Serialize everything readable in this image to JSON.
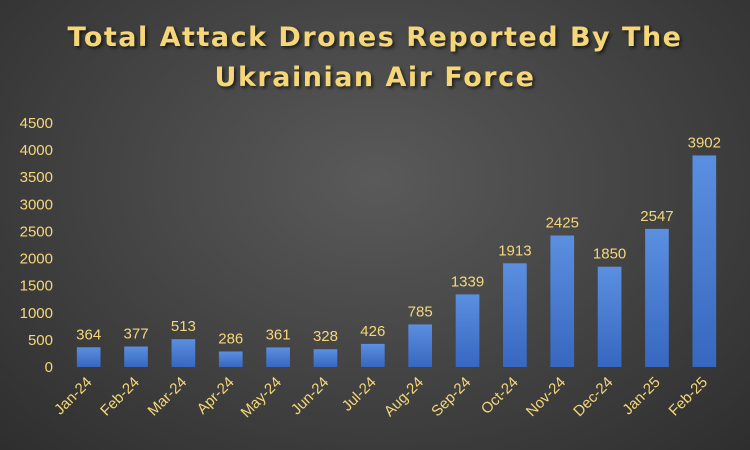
{
  "chart_data": {
    "type": "bar",
    "title": "Total Attack Drones Reported By The Ukrainian Air Force",
    "title_lines": [
      "Total Attack Drones Reported By The",
      "Ukrainian Air Force"
    ],
    "categories": [
      "Jan-24",
      "Feb-24",
      "Mar-24",
      "Apr-24",
      "May-24",
      "Jun-24",
      "Jul-24",
      "Aug-24",
      "Sep-24",
      "Oct-24",
      "Nov-24",
      "Dec-24",
      "Jan-25",
      "Feb-25"
    ],
    "values": [
      364,
      377,
      513,
      286,
      361,
      328,
      426,
      785,
      1339,
      1913,
      2425,
      1850,
      2547,
      3902
    ],
    "ylim": [
      0,
      4500
    ],
    "yticks": [
      0,
      500,
      1000,
      1500,
      2000,
      2500,
      3000,
      3500,
      4000,
      4500
    ],
    "xlabel": "",
    "ylabel": "",
    "grid": false,
    "data_labels": true,
    "colors": {
      "bar_top": "#5b8fe0",
      "bar_bottom": "#3767c0",
      "text": "#f5d77a"
    }
  }
}
